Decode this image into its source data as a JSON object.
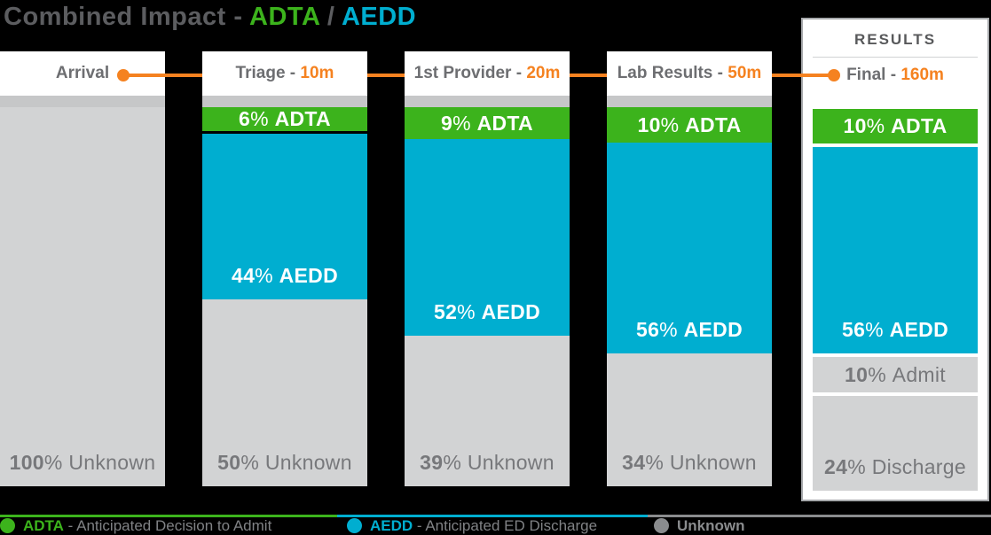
{
  "title": {
    "prefix": "Combined Impact - ",
    "highlight_adta": "ADTA",
    "separator": " / ",
    "highlight_aedd": "AEDD"
  },
  "results_panel": {
    "title": "RESULTS"
  },
  "colors": {
    "green": "#3cb31c",
    "blue": "#00aed0",
    "orange": "#f58220",
    "segment_gray": "#d2d3d4",
    "strip_gray": "#c6c7c8",
    "header_text_gray": "#6d6e71",
    "title_gray": "#5c5d60",
    "segment_text_gray": "#77787b",
    "legend_text_gray": "#808285",
    "legend_unknown_gray": "#8a8c8e",
    "panel_border_gray": "#a7a9ac",
    "background": "#000000"
  },
  "chart_data": {
    "type": "bar",
    "subtype": "stacked-percentage-timeline",
    "title": "Combined Impact - ADTA / AEDD",
    "unit": "% of patients",
    "categories": [
      "Arrival",
      "Triage - 10m",
      "1st Provider - 20m",
      "Lab Results - 50m",
      "Final - 160m"
    ],
    "stages": [
      {
        "label": "Arrival",
        "time": "",
        "marker": "end",
        "in_results_panel": false,
        "segments": [
          {
            "value": 100,
            "label": "Unknown",
            "kind": "unknown"
          }
        ]
      },
      {
        "label": "Triage",
        "time": "10m",
        "marker": "",
        "in_results_panel": false,
        "segments": [
          {
            "value": 6,
            "label": "ADTA",
            "kind": "adta",
            "separator_below": true
          },
          {
            "value": 44,
            "label": "AEDD",
            "kind": "aedd"
          },
          {
            "value": 50,
            "label": "Unknown",
            "kind": "unknown"
          }
        ]
      },
      {
        "label": "1st Provider",
        "time": "20m",
        "marker": "",
        "in_results_panel": false,
        "segments": [
          {
            "value": 9,
            "label": "ADTA",
            "kind": "adta"
          },
          {
            "value": 52,
            "label": "AEDD",
            "kind": "aedd"
          },
          {
            "value": 39,
            "label": "Unknown",
            "kind": "unknown"
          }
        ]
      },
      {
        "label": "Lab Results",
        "time": "50m",
        "marker": "",
        "in_results_panel": false,
        "segments": [
          {
            "value": 10,
            "label": "ADTA",
            "kind": "adta"
          },
          {
            "value": 56,
            "label": "AEDD",
            "kind": "aedd"
          },
          {
            "value": 34,
            "label": "Unknown",
            "kind": "unknown"
          }
        ]
      },
      {
        "label": "Final",
        "time": "160m",
        "marker": "start",
        "in_results_panel": true,
        "segments": [
          {
            "value": 10,
            "label": "ADTA",
            "kind": "adta"
          },
          {
            "value": 56,
            "label": "AEDD",
            "kind": "aedd"
          },
          {
            "value": 10,
            "label": "Admit",
            "kind": "admit"
          },
          {
            "value": 24,
            "label": "Discharge",
            "kind": "discharge"
          }
        ]
      }
    ]
  },
  "legend": {
    "items": [
      {
        "name": "ADTA",
        "description": " - Anticipated Decision to Admit",
        "kind": "adta"
      },
      {
        "name": "AEDD",
        "description": " - Anticipated ED Discharge",
        "kind": "aedd"
      },
      {
        "name": "Unknown",
        "description": "",
        "kind": "unknown"
      }
    ]
  }
}
